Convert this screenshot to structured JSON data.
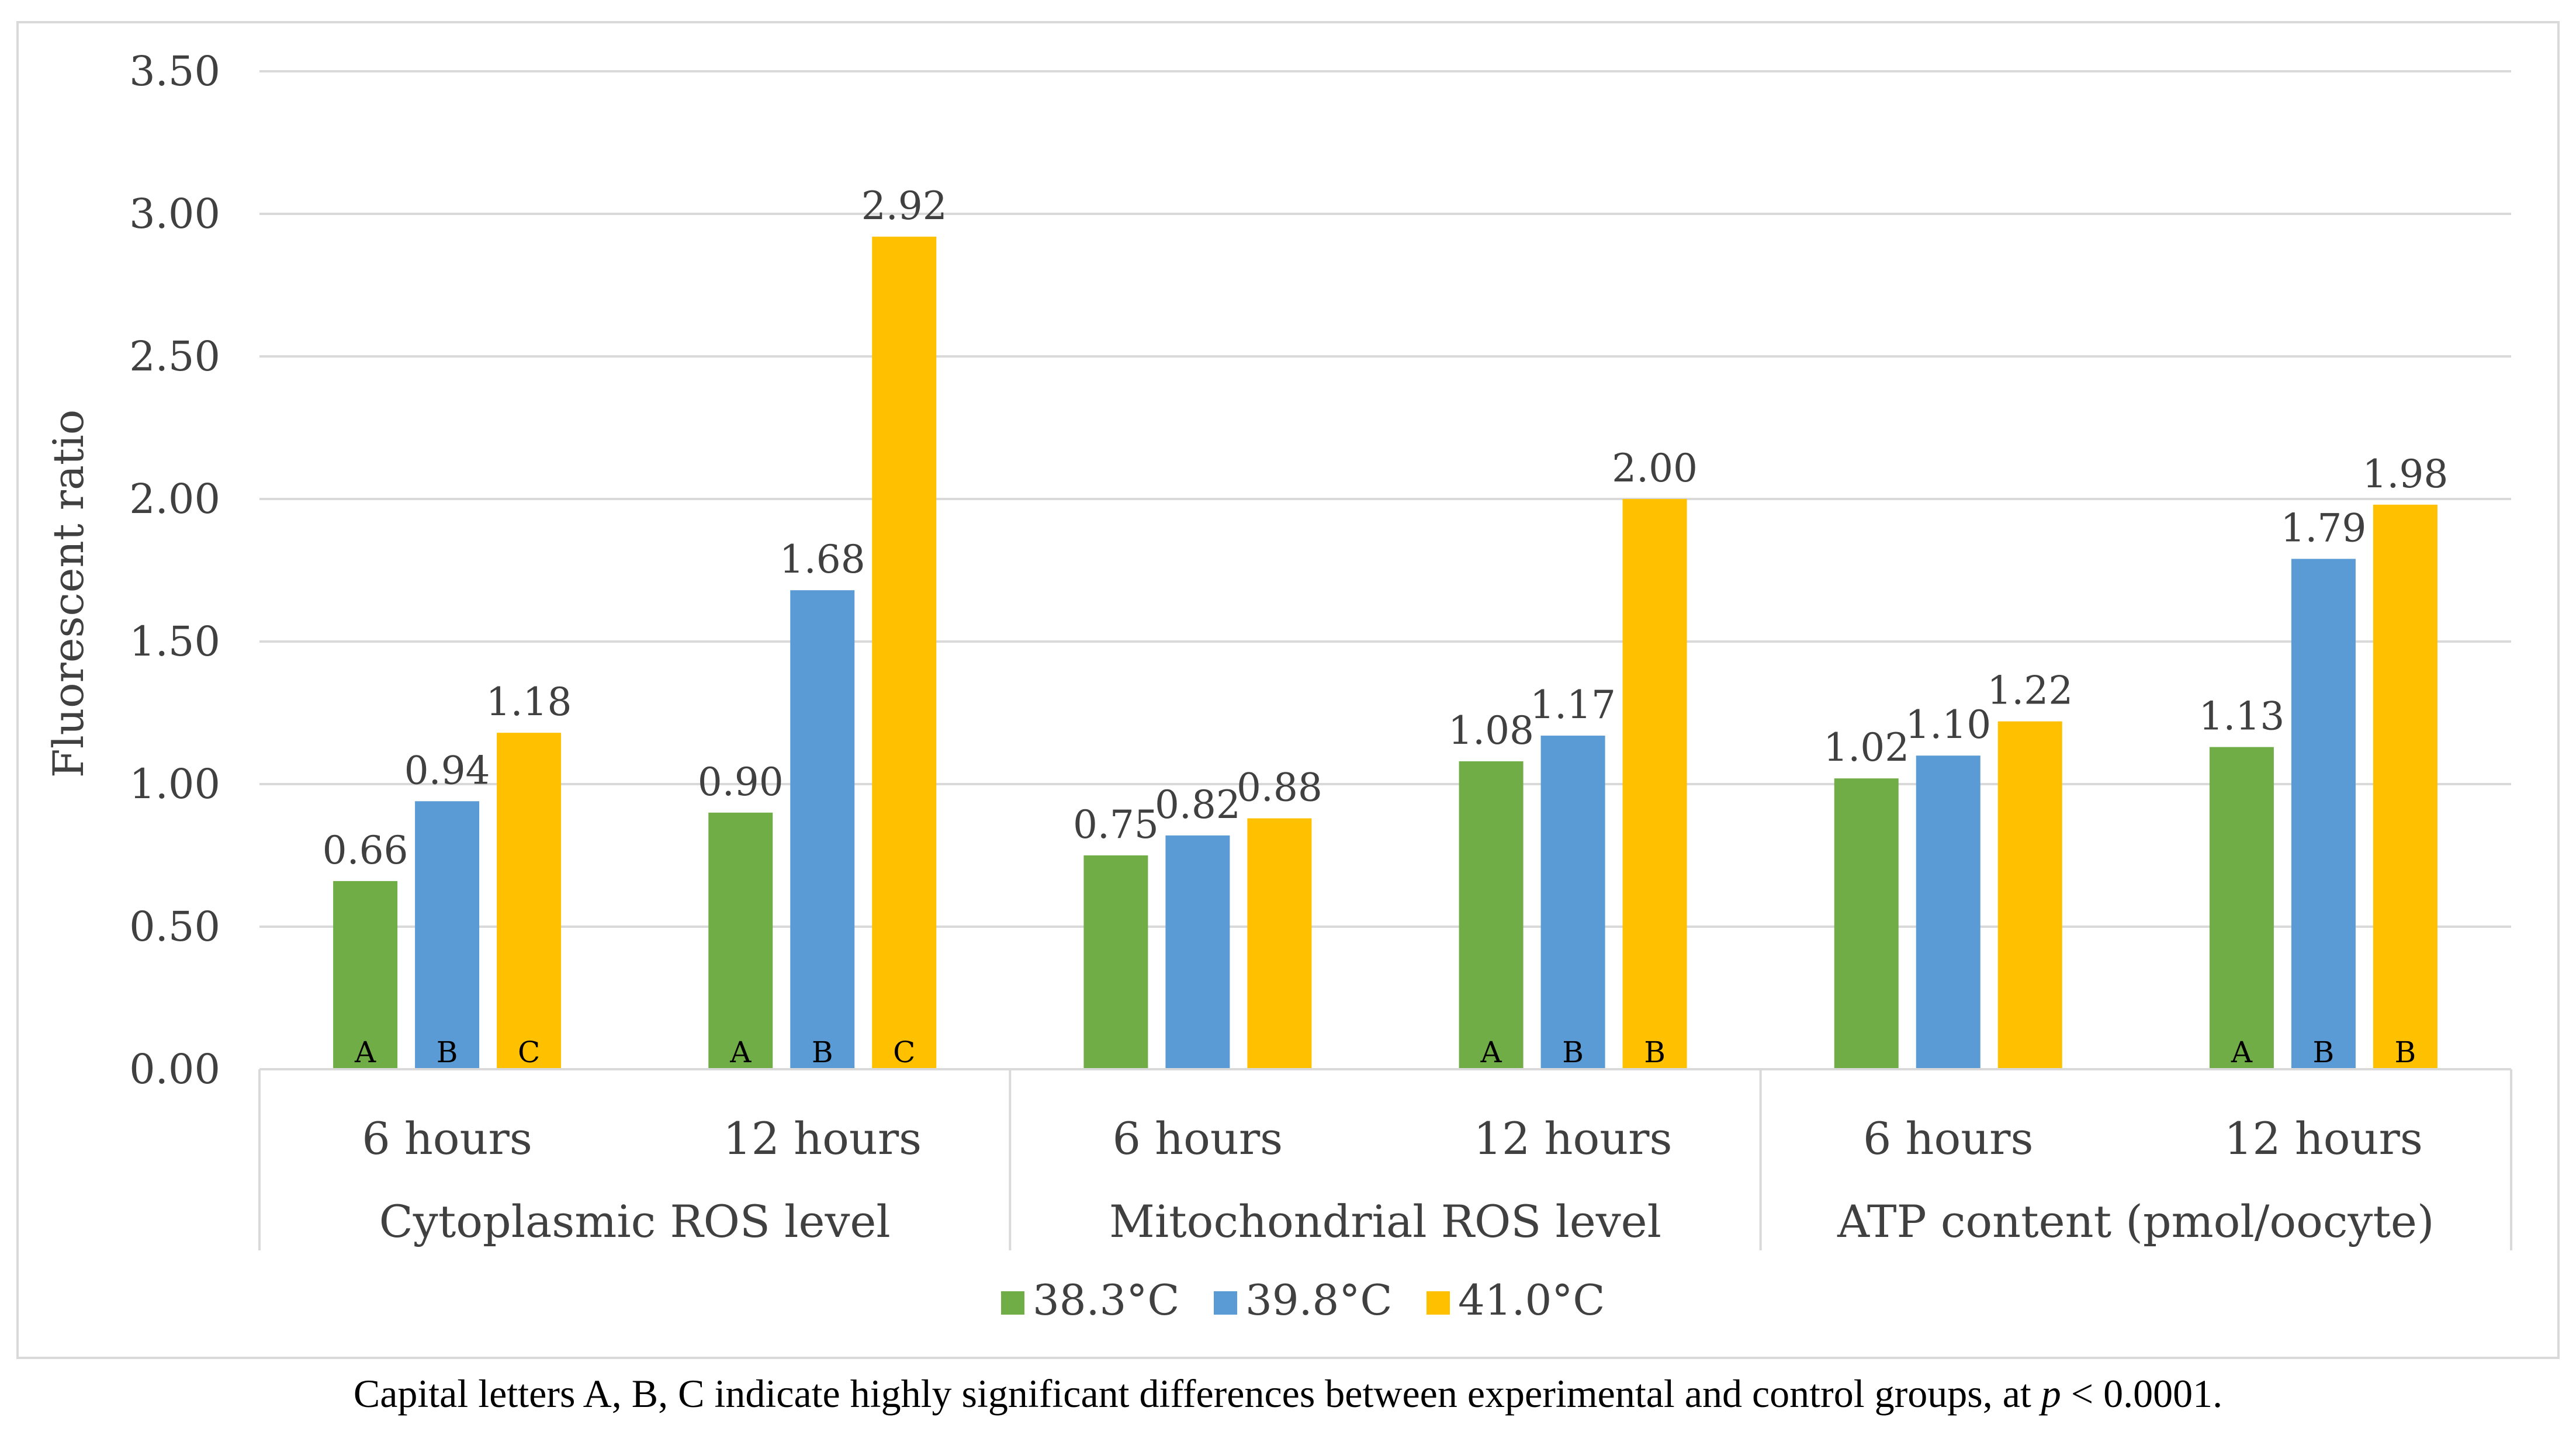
{
  "chart_data": {
    "type": "bar",
    "title": "",
    "ylabel": "Fluorescent ratio",
    "xlabel": "",
    "ylim": [
      0,
      3.5
    ],
    "ytick_step": 0.5,
    "yticks": [
      "0.00",
      "0.50",
      "1.00",
      "1.50",
      "2.00",
      "2.50",
      "3.00",
      "3.50"
    ],
    "grid": true,
    "legend_position": "bottom",
    "groups": [
      {
        "label": "Cytoplasmic ROS level",
        "subgroups": [
          {
            "label": "6 hours",
            "values": [
              0.66,
              0.94,
              1.18
            ],
            "value_labels": [
              "0.66",
              "0.94",
              "1.18"
            ],
            "letters": [
              "A",
              "B",
              "C"
            ]
          },
          {
            "label": "12 hours",
            "values": [
              0.9,
              1.68,
              2.92
            ],
            "value_labels": [
              "0.90",
              "1.68",
              "2.92"
            ],
            "letters": [
              "A",
              "B",
              "C"
            ]
          }
        ]
      },
      {
        "label": "Mitochondrial ROS level",
        "subgroups": [
          {
            "label": "6 hours",
            "values": [
              0.75,
              0.82,
              0.88
            ],
            "value_labels": [
              "0.75",
              "0.82",
              "0.88"
            ],
            "letters": [
              "",
              "",
              ""
            ]
          },
          {
            "label": "12 hours",
            "values": [
              1.08,
              1.17,
              2.0
            ],
            "value_labels": [
              "1.08",
              "1.17",
              "2.00"
            ],
            "letters": [
              "A",
              "B",
              "B"
            ]
          }
        ]
      },
      {
        "label": "ATP content (pmol/oocyte)",
        "subgroups": [
          {
            "label": "6 hours",
            "values": [
              1.02,
              1.1,
              1.22
            ],
            "value_labels": [
              "1.02",
              "1.10",
              "1.22"
            ],
            "letters": [
              "",
              "",
              ""
            ]
          },
          {
            "label": "12 hours",
            "values": [
              1.13,
              1.79,
              1.98
            ],
            "value_labels": [
              "1.13",
              "1.79",
              "1.98"
            ],
            "letters": [
              "A",
              "B",
              "B"
            ]
          }
        ]
      }
    ],
    "series": [
      {
        "name": "38.3°C",
        "color": "#70ad47"
      },
      {
        "name": "39.8°C",
        "color": "#5b9bd5"
      },
      {
        "name": "41.0°C",
        "color": "#ffc000"
      }
    ]
  },
  "caption": {
    "before": "Capital letters A, B, C indicate highly significant differences between experimental and control groups, at ",
    "italic": "p",
    "after": " < 0.0001."
  }
}
